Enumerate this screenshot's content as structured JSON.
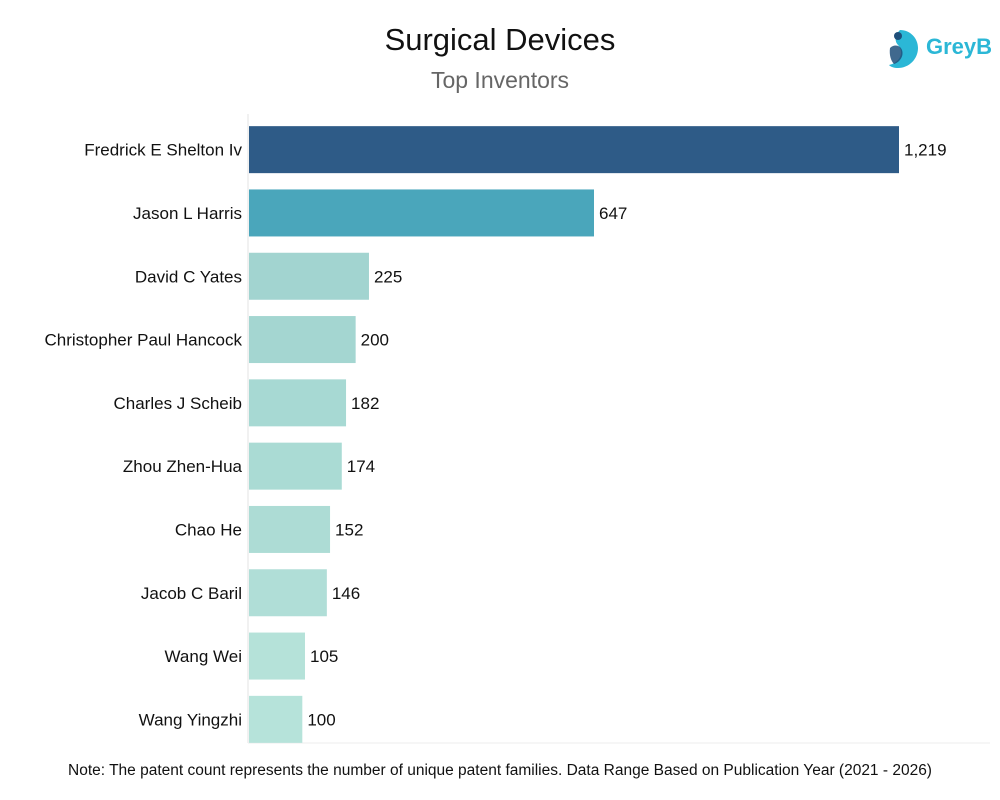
{
  "chart_data": {
    "type": "bar",
    "orientation": "horizontal",
    "title": "Surgical Devices",
    "subtitle": "Top Inventors",
    "categories": [
      "Fredrick E Shelton Iv",
      "Jason L Harris",
      "David C Yates",
      "Christopher Paul Hancock",
      "Charles J Scheib",
      "Zhou Zhen-Hua",
      "Chao He",
      "Jacob C Baril",
      "Wang Wei",
      "Wang Yingzhi"
    ],
    "values": [
      1219,
      647,
      225,
      200,
      182,
      174,
      152,
      146,
      105,
      100
    ],
    "value_labels": [
      "1,219",
      "647",
      "225",
      "200",
      "182",
      "174",
      "152",
      "146",
      "105",
      "100"
    ],
    "colors": [
      "#2e5b87",
      "#4aa6bb",
      "#a2d4d0",
      "#a4d6d1",
      "#a7d9d3",
      "#aadbd4",
      "#addcd5",
      "#b0ded7",
      "#b5e2d9",
      "#b6e3da"
    ],
    "xlabel": "",
    "ylabel": "",
    "xlim": [
      0,
      1219
    ],
    "grid": false,
    "legend": "none"
  },
  "logo": {
    "text": "GreyB",
    "color": "#2bb7d6"
  },
  "note": "Note: The patent count represents the number of unique patent families. Data Range Based on Publication Year (2021 - 2026)"
}
